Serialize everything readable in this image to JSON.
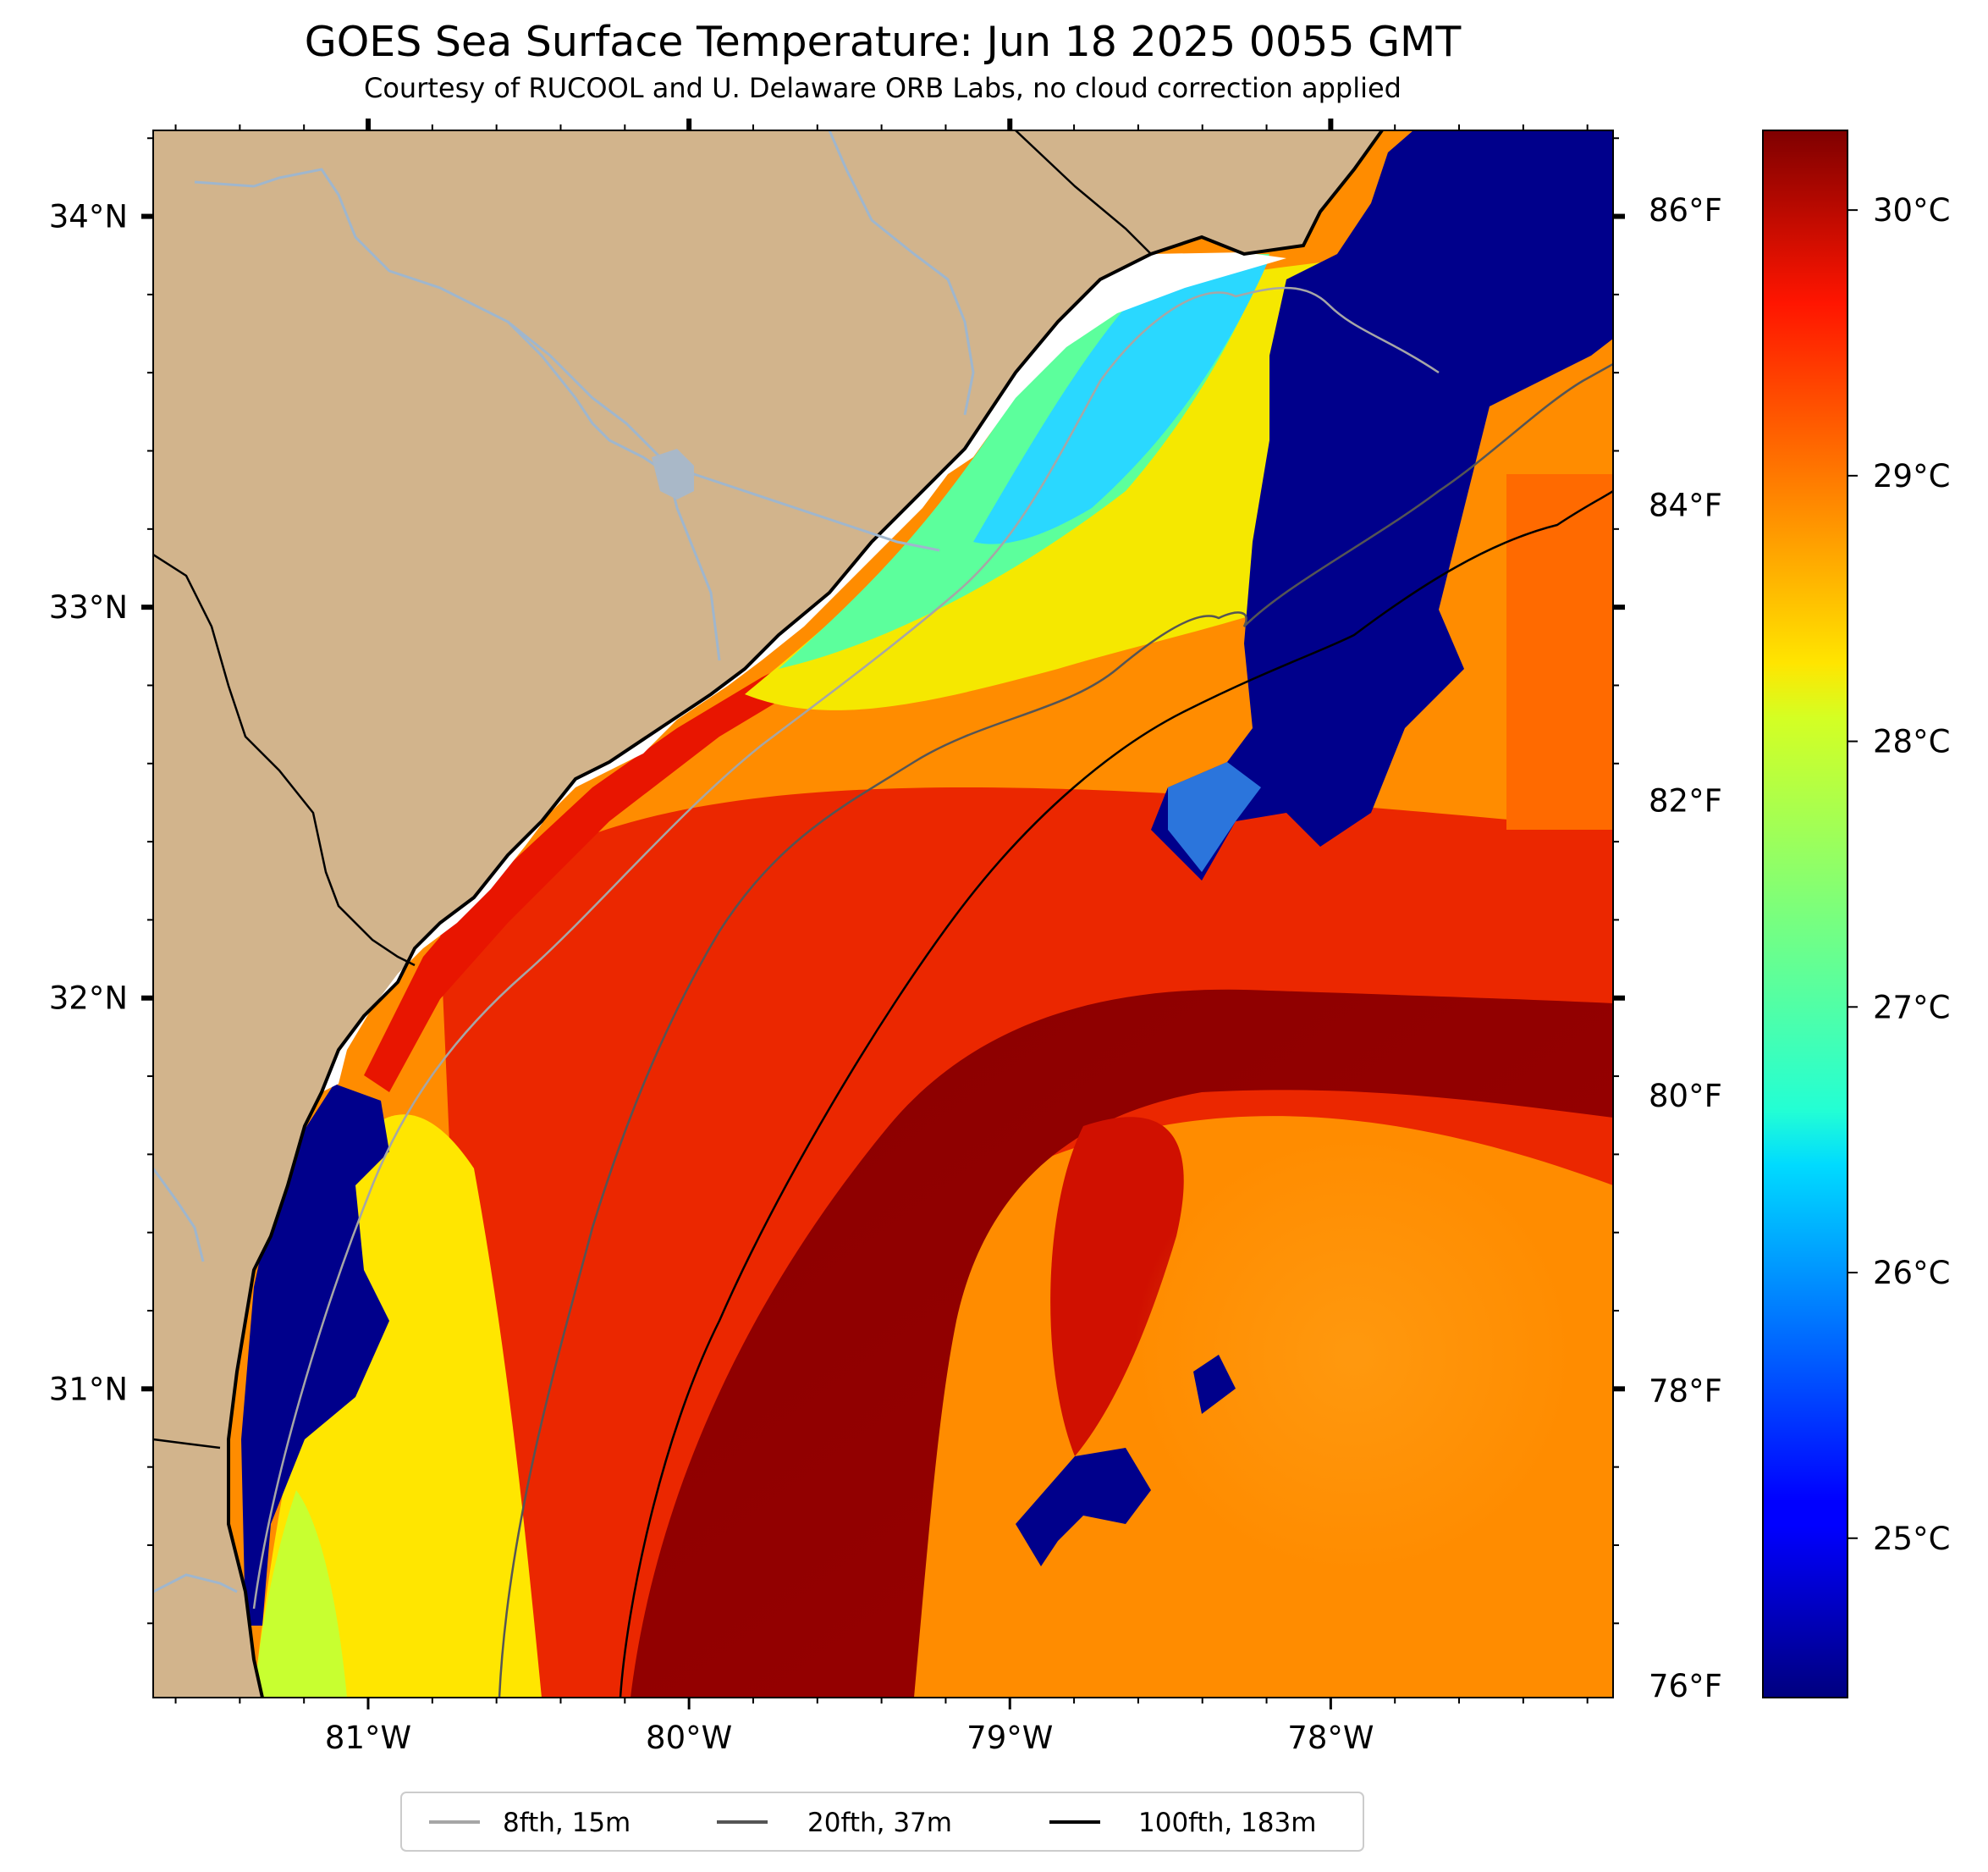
{
  "title": "GOES Sea Surface Temperature: Jun 18 2025 0055 GMT",
  "subtitle": "Courtesy of RUCOOL and U. Delaware ORB Labs, no cloud correction applied",
  "colors": {
    "land": "#d2b48c",
    "coast": "#000000",
    "rivers": "#9fb6cd",
    "clouds": "#00008b",
    "no_data": "#ffffff"
  },
  "map": {
    "lon_range": [
      -81.67,
      -77.12
    ],
    "lat_range": [
      30.21,
      34.22
    ],
    "lon_ticks": [
      {
        "value": -81,
        "label": "81°W"
      },
      {
        "value": -80,
        "label": "80°W"
      },
      {
        "value": -79,
        "label": "79°W"
      },
      {
        "value": -78,
        "label": "78°W"
      }
    ],
    "lat_ticks": [
      {
        "value": 34,
        "label": "34°N"
      },
      {
        "value": 33,
        "label": "33°N"
      },
      {
        "value": 32,
        "label": "32°N"
      },
      {
        "value": 31,
        "label": "31°N"
      }
    ],
    "right_axis_ticks": [
      {
        "label": "86°F"
      },
      {
        "label": "84°F"
      },
      {
        "label": "82°F"
      },
      {
        "label": "80°F"
      },
      {
        "label": "78°F"
      },
      {
        "label": "76°F"
      }
    ]
  },
  "colorbar": {
    "colormap": "jet",
    "min_c": 24.4,
    "max_c": 30.3,
    "ticks": [
      {
        "value": 25,
        "label": "25°C"
      },
      {
        "value": 26,
        "label": "26°C"
      },
      {
        "value": 27,
        "label": "27°C"
      },
      {
        "value": 28,
        "label": "28°C"
      },
      {
        "value": 29,
        "label": "29°C"
      },
      {
        "value": 30,
        "label": "30°C"
      }
    ]
  },
  "legend": {
    "placement": "bottom-center",
    "items": [
      {
        "label": "8fth, 15m",
        "color": "#a6a6a6"
      },
      {
        "label": "20fth, 37m",
        "color": "#555555"
      },
      {
        "label": "100fth, 183m",
        "color": "#000000"
      }
    ]
  }
}
